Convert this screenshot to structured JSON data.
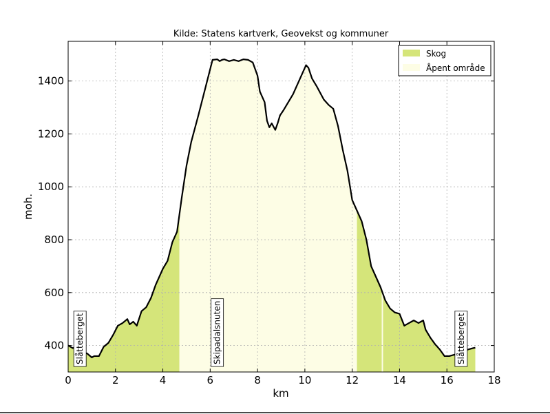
{
  "chart_data": {
    "type": "area",
    "title": "Kilde: Statens kartverk, Geovekst og kommuner",
    "xlabel": "km",
    "ylabel": "moh.",
    "xlim": [
      0,
      18
    ],
    "ylim": [
      300,
      1550
    ],
    "xticks": [
      0,
      2,
      4,
      6,
      8,
      10,
      12,
      14,
      16,
      18
    ],
    "yticks": [
      400,
      600,
      800,
      1000,
      1200,
      1400
    ],
    "grid": true,
    "legend_position": "top-right",
    "colors": {
      "skog": "#d5e57a",
      "apent": "#fdfde5",
      "line": "#000000",
      "grid": "#b0b0b0"
    },
    "legend": [
      {
        "label": "Skog",
        "color": "#d5e57a"
      },
      {
        "label": "Åpent område",
        "color": "#fdfde5"
      }
    ],
    "series": [
      {
        "name": "Skog",
        "ranges_km": [
          [
            0.0,
            4.7
          ],
          [
            12.2,
            13.25
          ],
          [
            13.3,
            17.2
          ]
        ]
      },
      {
        "name": "Åpent område",
        "ranges_km": [
          [
            4.7,
            12.2
          ],
          [
            13.25,
            13.3
          ]
        ]
      }
    ],
    "profile": {
      "x": [
        0.0,
        0.2,
        0.35,
        0.6,
        0.8,
        1.0,
        1.1,
        1.3,
        1.5,
        1.7,
        1.9,
        2.1,
        2.3,
        2.5,
        2.6,
        2.75,
        2.9,
        3.1,
        3.3,
        3.5,
        3.7,
        3.9,
        4.0,
        4.2,
        4.4,
        4.6,
        4.8,
        5.0,
        5.2,
        5.5,
        5.7,
        5.9,
        6.1,
        6.3,
        6.4,
        6.5,
        6.6,
        6.8,
        7.0,
        7.2,
        7.4,
        7.6,
        7.8,
        8.0,
        8.1,
        8.3,
        8.4,
        8.5,
        8.6,
        8.75,
        8.85,
        8.95,
        9.1,
        9.3,
        9.5,
        9.7,
        9.9,
        10.05,
        10.15,
        10.3,
        10.5,
        10.8,
        11.0,
        11.2,
        11.4,
        11.6,
        11.8,
        12.0,
        12.2,
        12.4,
        12.6,
        12.8,
        13.0,
        13.2,
        13.4,
        13.6,
        13.8,
        14.0,
        14.2,
        14.4,
        14.6,
        14.8,
        15.0,
        15.1,
        15.3,
        15.5,
        15.7,
        15.9,
        16.1,
        16.3,
        16.5,
        16.7,
        16.9,
        17.1,
        17.2
      ],
      "y": [
        400,
        390,
        395,
        375,
        370,
        355,
        360,
        360,
        395,
        410,
        440,
        475,
        485,
        500,
        480,
        490,
        475,
        530,
        545,
        580,
        630,
        670,
        690,
        720,
        790,
        830,
        960,
        1080,
        1170,
        1270,
        1340,
        1410,
        1480,
        1482,
        1475,
        1480,
        1482,
        1475,
        1480,
        1475,
        1482,
        1480,
        1470,
        1420,
        1360,
        1320,
        1250,
        1225,
        1240,
        1215,
        1240,
        1270,
        1290,
        1320,
        1350,
        1390,
        1430,
        1460,
        1450,
        1410,
        1380,
        1330,
        1310,
        1295,
        1230,
        1140,
        1060,
        950,
        910,
        870,
        800,
        700,
        660,
        620,
        570,
        540,
        525,
        520,
        475,
        485,
        495,
        485,
        495,
        460,
        430,
        405,
        385,
        360,
        360,
        365,
        370,
        380,
        385,
        390,
        392
      ]
    },
    "annotations": [
      {
        "text": "Slåtteberget",
        "x": 0.5
      },
      {
        "text": "Skipadalsnuten",
        "x": 6.3
      },
      {
        "text": "Slåtteberget",
        "x": 16.6
      }
    ]
  }
}
